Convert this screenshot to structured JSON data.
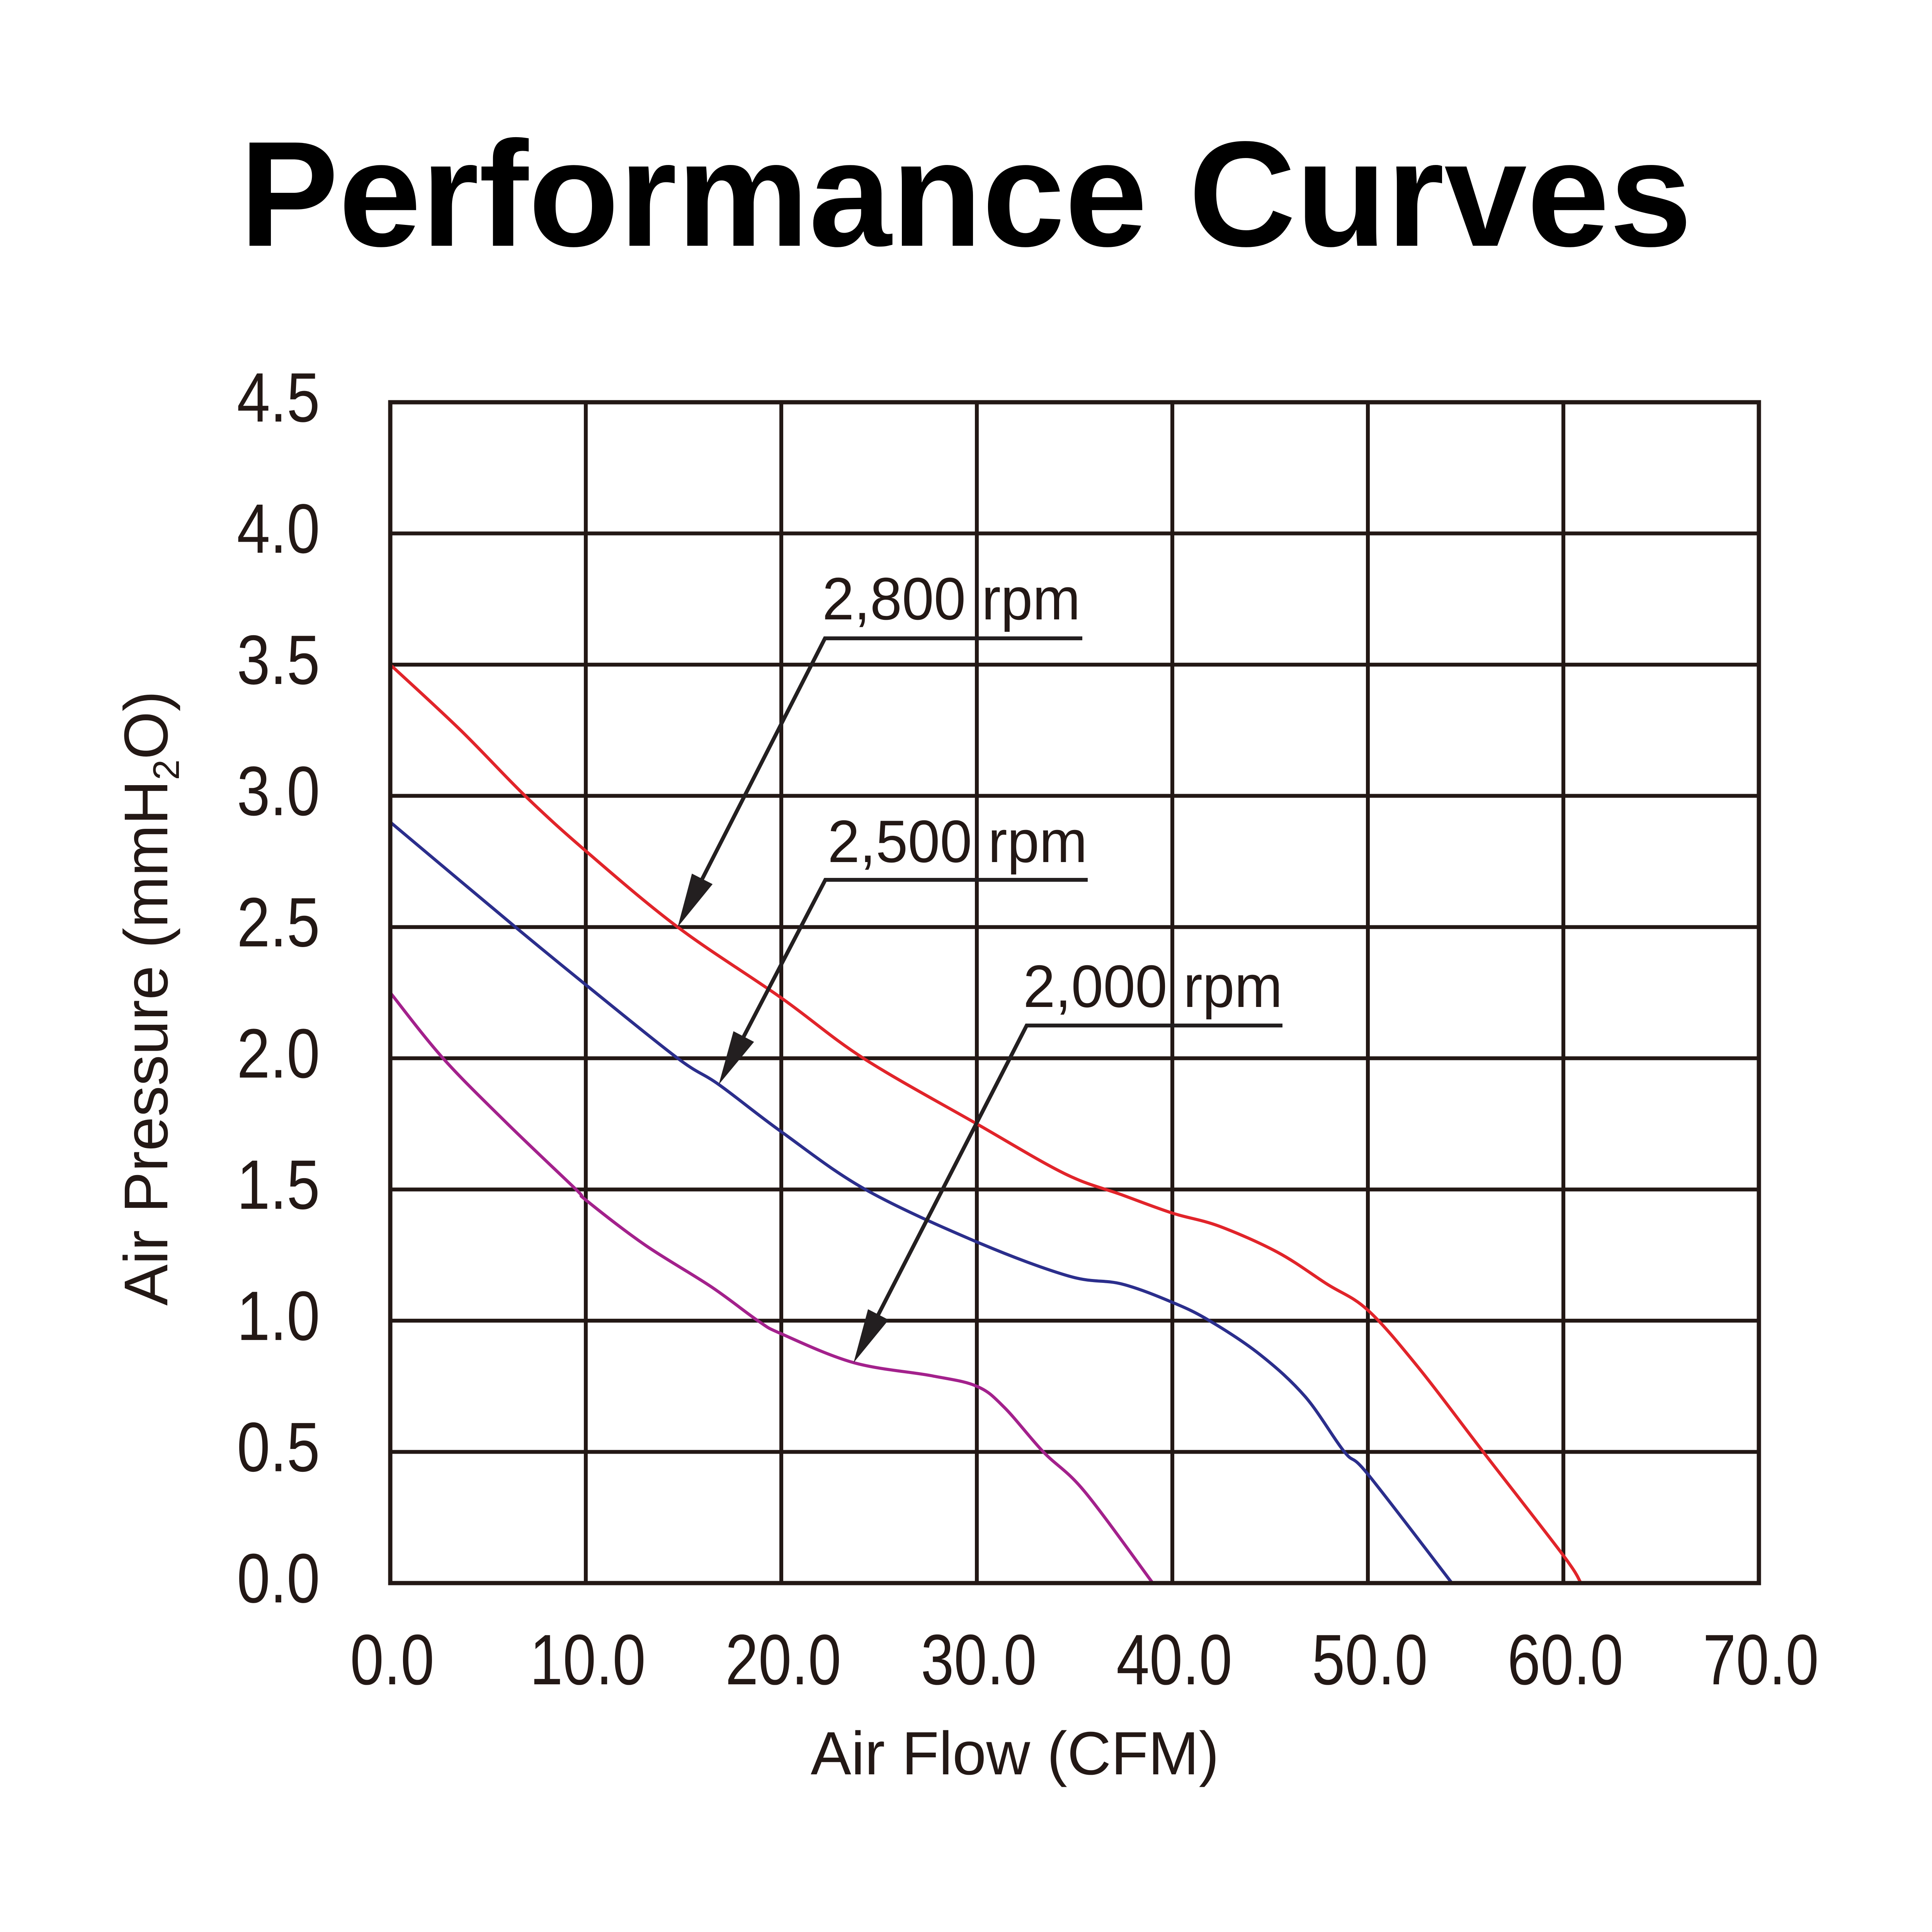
{
  "chart_data": {
    "type": "line",
    "title": "Performance Curves",
    "xlabel": "Air Flow (CFM)",
    "ylabel": "Air Pressure (mmH",
    "ylabel_sub": "2",
    "ylabel_end": "O)",
    "xlim": [
      0,
      70
    ],
    "ylim": [
      0,
      4.5
    ],
    "grid": true,
    "x_ticks": [
      {
        "value": 0,
        "label": "0.0"
      },
      {
        "value": 10,
        "label": "10.0"
      },
      {
        "value": 20,
        "label": "20.0"
      },
      {
        "value": 30,
        "label": "30.0"
      },
      {
        "value": 40,
        "label": "40.0"
      },
      {
        "value": 50,
        "label": "50.0"
      },
      {
        "value": 60,
        "label": "60.0"
      },
      {
        "value": 70,
        "label": "70.0"
      }
    ],
    "y_ticks": [
      {
        "value": 0,
        "label": "0.0"
      },
      {
        "value": 0.5,
        "label": "0.5"
      },
      {
        "value": 1.0,
        "label": "1.0"
      },
      {
        "value": 1.5,
        "label": "1.5"
      },
      {
        "value": 2.0,
        "label": "2.0"
      },
      {
        "value": 2.5,
        "label": "2.5"
      },
      {
        "value": 3.0,
        "label": "3.0"
      },
      {
        "value": 3.5,
        "label": "3.5"
      },
      {
        "value": 4.0,
        "label": "4.0"
      },
      {
        "value": 4.5,
        "label": "4.5"
      }
    ],
    "series": [
      {
        "name": "2,800 rpm",
        "color": "#e1242a",
        "points_to": [
          14.7,
          2.5
        ],
        "x": [
          0,
          3.6,
          6.9,
          10,
          14.7,
          20,
          24.2,
          30,
          34.5,
          37.4,
          40,
          42.4,
          45.4,
          47.9,
          50,
          52.6,
          55.9,
          60,
          60.9
        ],
        "y": [
          3.5,
          3.25,
          3.0,
          2.79,
          2.5,
          2.23,
          2.0,
          1.75,
          1.56,
          1.48,
          1.41,
          1.36,
          1.26,
          1.14,
          1.04,
          0.82,
          0.5,
          0.105,
          0
        ]
      },
      {
        "name": "2,500 rpm",
        "color": "#2b2e8c",
        "points_to": [
          16.8,
          1.9
        ],
        "x": [
          0,
          6.4,
          10,
          14.7,
          16.8,
          20,
          24.3,
          30,
          34.7,
          37.4,
          40,
          41.9,
          44.5,
          46.8,
          48.8,
          50,
          54.3
        ],
        "y": [
          2.9,
          2.5,
          2.28,
          2.0,
          1.9,
          1.72,
          1.5,
          1.3,
          1.17,
          1.14,
          1.07,
          1.0,
          0.87,
          0.71,
          0.5,
          0.415,
          0
        ]
      },
      {
        "name": "2,000 rpm",
        "color": "#a3218c",
        "points_to": [
          23.7,
          0.84
        ],
        "x": [
          0,
          2.7,
          6.0,
          9.5,
          10,
          13.0,
          16.4,
          18.8,
          20,
          23.7,
          27.7,
          30,
          31.4,
          33.4,
          35.5,
          39.0
        ],
        "y": [
          2.25,
          2.0,
          1.75,
          1.5,
          1.46,
          1.29,
          1.13,
          1.0,
          0.95,
          0.84,
          0.79,
          0.75,
          0.67,
          0.5,
          0.35,
          0
        ]
      }
    ]
  }
}
